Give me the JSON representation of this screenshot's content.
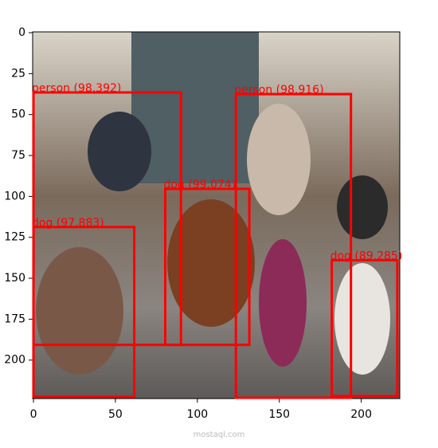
{
  "chart_data": {
    "type": "image",
    "xlim": [
      -0.5,
      223.5
    ],
    "ylim": [
      223.5,
      -0.5
    ],
    "xticks": [
      0,
      50,
      100,
      150,
      200
    ],
    "yticks": [
      0,
      25,
      50,
      75,
      100,
      125,
      150,
      175,
      200
    ],
    "box_color": "#ff0000",
    "boxes": [
      {
        "label": "person (98.392)",
        "x0": 0,
        "y0": 36.5,
        "x1": 90,
        "y1": 190.7
      },
      {
        "label": "person (98.916)",
        "x0": 123.5,
        "y0": 37.5,
        "x1": 193.7,
        "y1": 223
      },
      {
        "label": "dog (99.074)",
        "x0": 80.4,
        "y0": 95.4,
        "x1": 131.7,
        "y1": 190.7
      },
      {
        "label": "dog (97.883)",
        "x0": 0,
        "y0": 118.7,
        "x1": 61.5,
        "y1": 222.4
      },
      {
        "label": "dog (89.285)",
        "x0": 182,
        "y0": 139,
        "x1": 222,
        "y1": 222
      }
    ],
    "watermark": "mostaql.com"
  }
}
